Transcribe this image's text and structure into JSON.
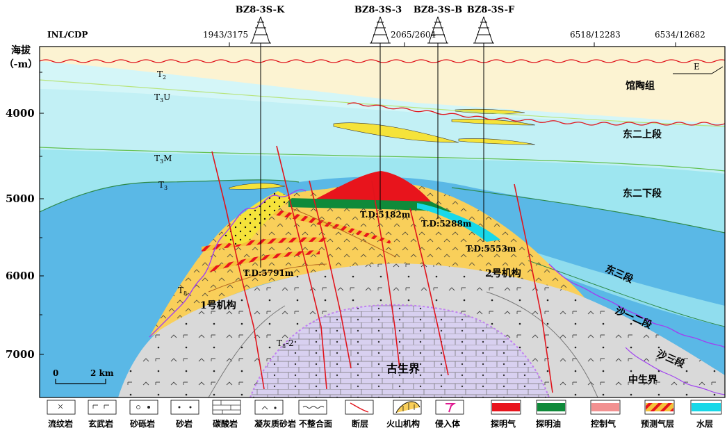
{
  "header": {
    "inl_cdp_label": "INL/CDP",
    "axis_title_line1": "海拔",
    "axis_title_line2": "（-m）",
    "direction": "E",
    "cdp_ticks": [
      "1943/3175",
      "2065/2604",
      "6518/12283",
      "6534/12682"
    ]
  },
  "wells": [
    {
      "name": "BZ8-3S-K",
      "td": "T.D:5791m"
    },
    {
      "name": "BZ8-3S-3",
      "td": "T.D:5182m"
    },
    {
      "name": "BZ8-3S-B",
      "td": "T.D:5288m"
    },
    {
      "name": "BZ8-3S-F",
      "td": "T.D:5553m"
    }
  ],
  "depth_ticks": [
    "4000",
    "5000",
    "6000",
    "7000"
  ],
  "horizons": [
    {
      "code": "T",
      "sub": "2"
    },
    {
      "code": "T",
      "sub": "3",
      "suffix": "U"
    },
    {
      "code": "T",
      "sub": "3",
      "suffix": "M"
    },
    {
      "code": "T",
      "sub": "3"
    },
    {
      "code": "T",
      "sub": "8"
    },
    {
      "code": "T",
      "sub": "8",
      "suffix": "-2"
    }
  ],
  "formations": {
    "guantao": "馆陶组",
    "dong2_upper": "东二上段",
    "dong2_lower": "东二下段",
    "dong3": "东三段",
    "sha12": "沙一二段",
    "sha3": "沙三段",
    "mesozoic": "中生界",
    "paleozoic": "古生界",
    "edifice1": "1号机构",
    "edifice2": "2号机构"
  },
  "scale_bar": {
    "start": "0",
    "end": "2 km"
  },
  "legend": [
    {
      "icon": "rhyolite-icon",
      "label": "流纹岩"
    },
    {
      "icon": "basalt-icon",
      "label": "玄武岩"
    },
    {
      "icon": "glutenite-icon",
      "label": "砂砾岩"
    },
    {
      "icon": "sandstone-icon",
      "label": "砂岩"
    },
    {
      "icon": "carbonate-icon",
      "label": "碳酸岩"
    },
    {
      "icon": "tuffaceous-sandstone-icon",
      "label": "凝灰质砂岩"
    },
    {
      "icon": "unconformity-icon",
      "label": "不整合面"
    },
    {
      "icon": "fault-icon",
      "label": "断层"
    },
    {
      "icon": "volcanic-edifice-icon",
      "label": "火山机构"
    },
    {
      "icon": "intrusion-icon",
      "label": "侵入体"
    },
    {
      "icon": "proven-gas-icon",
      "label": "探明气",
      "color": "#e8141c"
    },
    {
      "icon": "proven-oil-icon",
      "label": "探明油",
      "color": "#0f8a3a"
    },
    {
      "icon": "controlled-gas-icon",
      "label": "控制气",
      "color": "#f29191"
    },
    {
      "icon": "predicted-gas-icon",
      "label": "预测气层",
      "color": "#f5c23a"
    },
    {
      "icon": "water-layer-icon",
      "label": "水层",
      "color": "#18d8e8"
    }
  ],
  "colors": {
    "quaternary": "#fcf3d2",
    "water_light": "#d4f6f8",
    "water_mid": "#9ee6f0",
    "water_deep": "#5ab8e6",
    "volcanic": "#f9cf5a",
    "mesozoic": "#d9d9d9",
    "paleozoic": "#d8d0f0",
    "gas": "#e8141c",
    "oil": "#0f8a3a",
    "fault": "#e0141c"
  }
}
